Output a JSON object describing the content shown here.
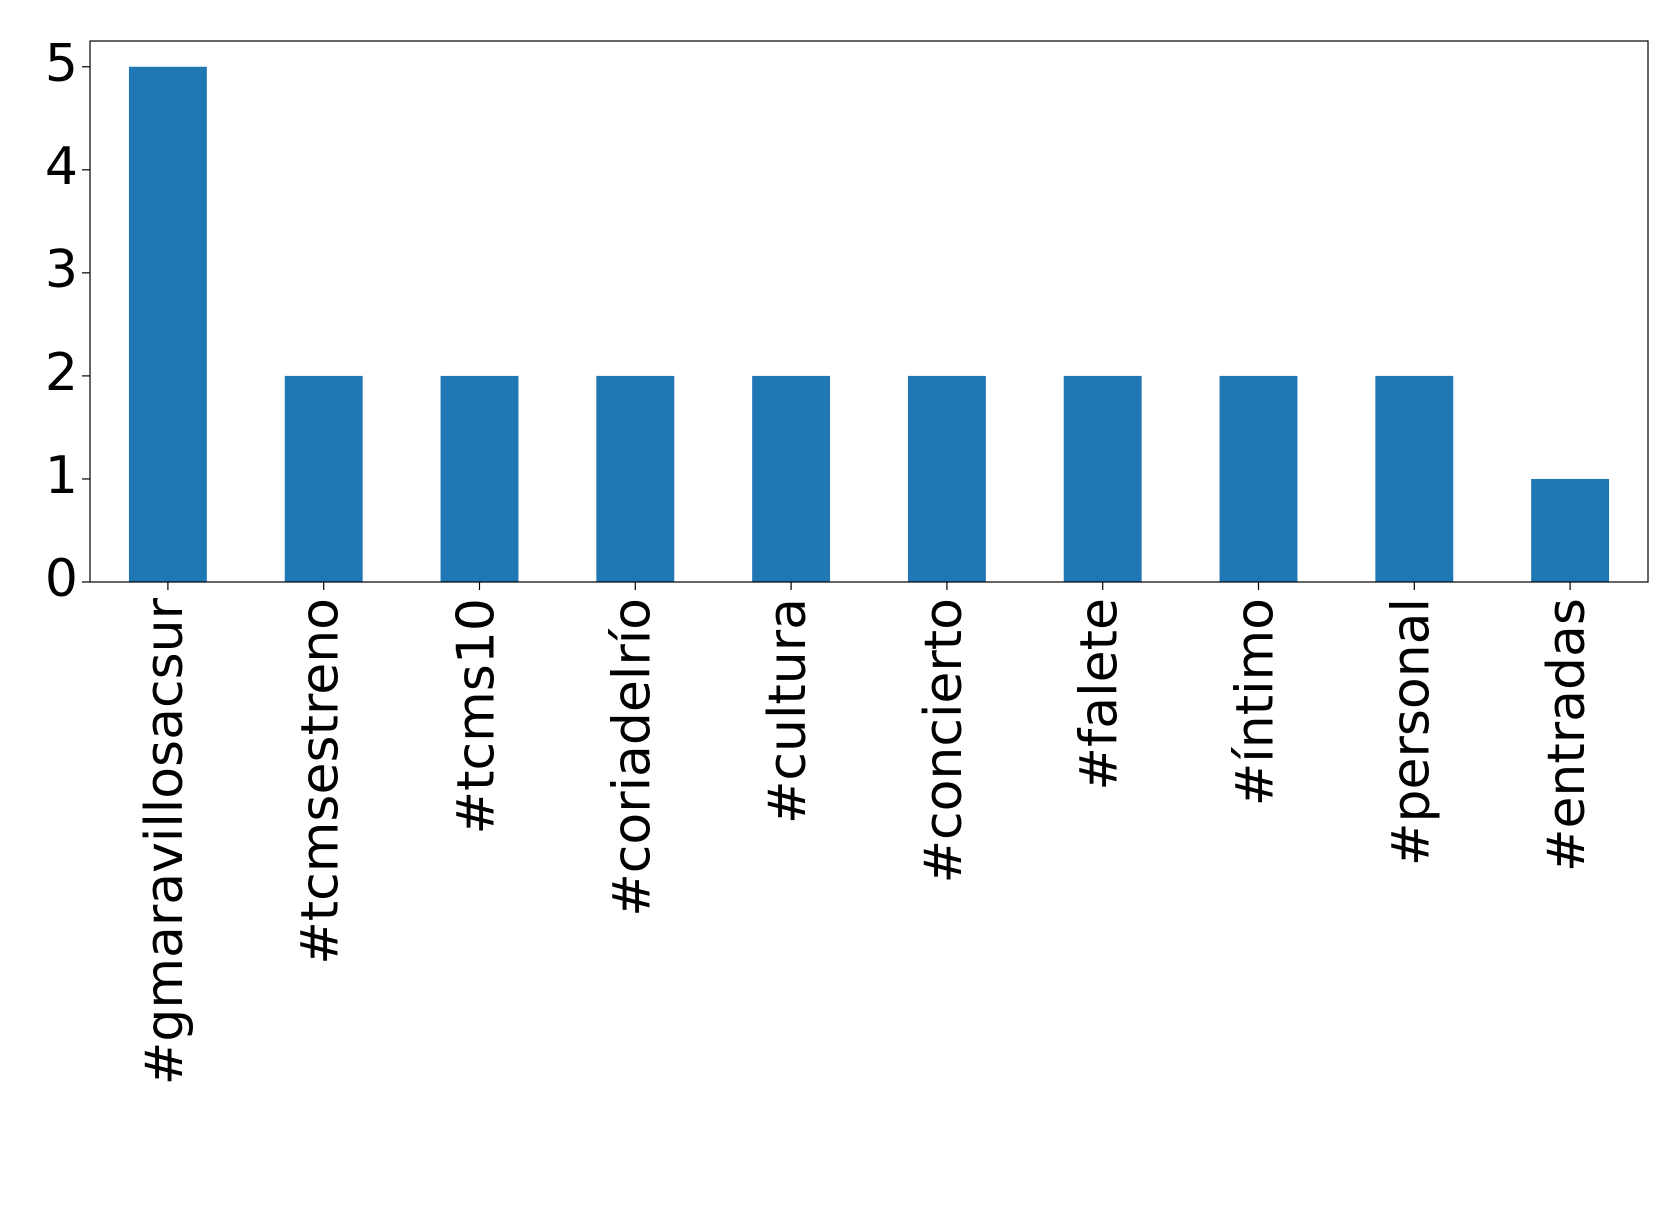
{
  "chart_data": {
    "type": "bar",
    "categories": [
      "#gmaravillosacsur",
      "#tcmsestreno",
      "#tcms10",
      "#coriadelrío",
      "#cultura",
      "#concierto",
      "#falete",
      "#íntimo",
      "#personal",
      "#entradas"
    ],
    "values": [
      5,
      2,
      2,
      2,
      2,
      2,
      2,
      2,
      2,
      1
    ],
    "color": "#1f77b4",
    "ylim": [
      0,
      5.25
    ],
    "yticks": [
      0,
      1,
      2,
      3,
      4,
      5
    ],
    "grid": false
  }
}
